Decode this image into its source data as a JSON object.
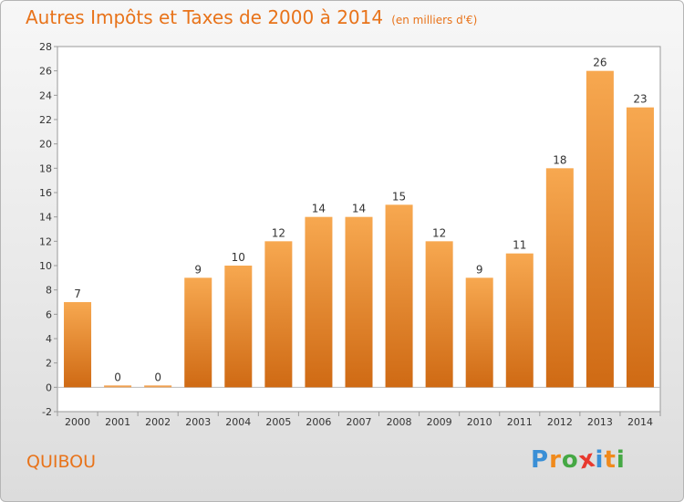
{
  "title": "Autres Impôts et Taxes de 2000 à 2014",
  "unit": "(en milliers d'€)",
  "commune": "QUIBOU",
  "logo": {
    "letters": [
      "P",
      "r",
      "o",
      "x",
      "i",
      "t",
      "i"
    ],
    "colors": [
      "#3a8fd6",
      "#f08a1c",
      "#45a844",
      "#e8392e",
      "#3a8fd6",
      "#f08a1c",
      "#45a844"
    ]
  },
  "colors": {
    "accent": "#e8731a",
    "bar_top": "#f7a850",
    "bar_bottom": "#cf6a14"
  },
  "chart_data": {
    "type": "bar",
    "title": "Autres Impôts et Taxes de 2000 à 2014",
    "xlabel": "",
    "ylabel": "",
    "categories": [
      "2000",
      "2001",
      "2002",
      "2003",
      "2004",
      "2005",
      "2006",
      "2007",
      "2008",
      "2009",
      "2010",
      "2011",
      "2012",
      "2013",
      "2014"
    ],
    "values": [
      7,
      0,
      0,
      9,
      10,
      12,
      14,
      14,
      15,
      12,
      9,
      11,
      18,
      26,
      23
    ],
    "ylim": [
      -2,
      28
    ],
    "yticks": [
      -2,
      0,
      2,
      4,
      6,
      8,
      10,
      12,
      14,
      16,
      18,
      20,
      22,
      24,
      26,
      28
    ],
    "grid": false,
    "legend": "none"
  }
}
